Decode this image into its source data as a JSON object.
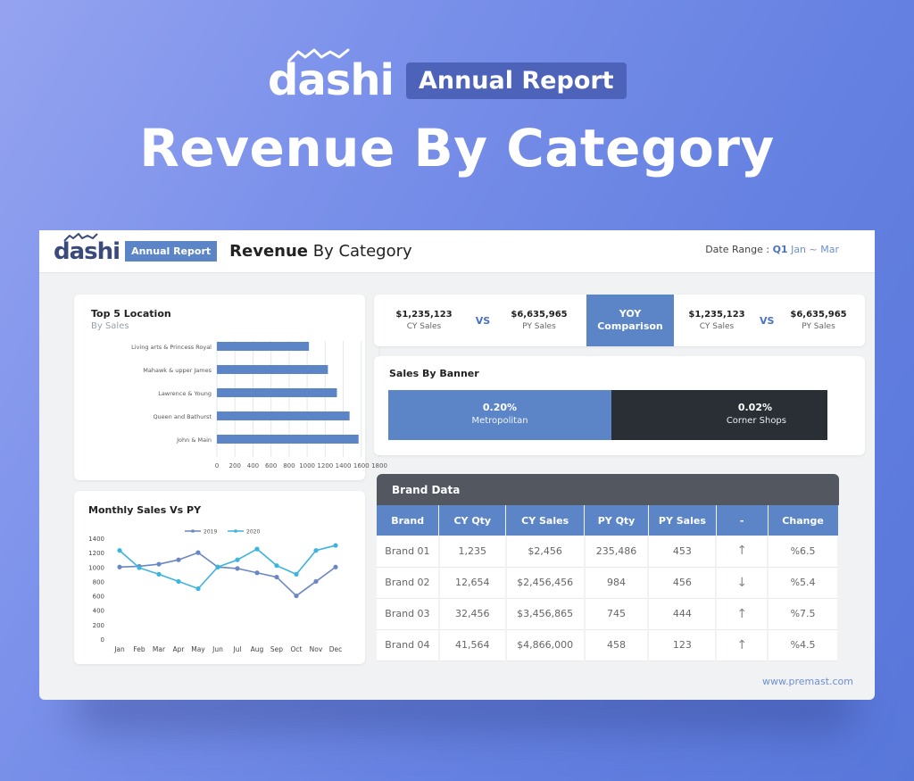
{
  "hero": {
    "logo": "dashi",
    "badge": "Annual Report",
    "title": "Revenue By Category"
  },
  "header": {
    "logo": "dashi",
    "badge": "Annual Report",
    "title_bold": "Revenue",
    "title_rest": " By Category",
    "date_label": "Date Range : ",
    "date_quarter": "Q1",
    "date_months": " Jan ~ Mar"
  },
  "top5": {
    "title": "Top 5 Location",
    "subtitle": "By Sales"
  },
  "monthly": {
    "title": "Monthly Sales Vs PY"
  },
  "yoy": {
    "left_cy_value": "$1,235,123",
    "left_cy_label": "CY Sales",
    "left_vs": "VS",
    "left_py_value": "$6,635,965",
    "left_py_label": "PY Sales",
    "mid_line1": "YOY",
    "mid_line2": "Comparison",
    "right_cy_value": "$1,235,123",
    "right_cy_label": "CY Sales",
    "right_vs": "VS",
    "right_py_value": "$6,635,965",
    "right_py_label": "PY Sales"
  },
  "banner": {
    "title": "Sales By Banner",
    "a_pct": "0.20%",
    "a_name": "Metropolitan",
    "b_pct": "0.02%",
    "b_name": "Corner Shops"
  },
  "brand": {
    "title": "Brand Data",
    "columns": [
      "Brand",
      "CY Qty",
      "CY Sales",
      "PY Qty",
      "PY Sales",
      "-",
      "Change"
    ],
    "rows": [
      [
        "Brand 01",
        "1,235",
        "$2,456",
        "235,486",
        "453",
        "↑",
        "%6.5"
      ],
      [
        "Brand 02",
        "12,654",
        "$2,456,456",
        "984",
        "456",
        "↓",
        "%5.4"
      ],
      [
        "Brand 03",
        "32,456",
        "$3,456,865",
        "745",
        "444",
        "↑",
        "%7.5"
      ],
      [
        "Brand 04",
        "41,564",
        "$4,866,000",
        "458",
        "123",
        "↑",
        "%4.5"
      ]
    ]
  },
  "footer": {
    "site": "www.premast.com"
  },
  "colors": {
    "accent": "#5c85c8",
    "dark": "#2a2f36",
    "line_2019": "#6b86c4",
    "line_2020": "#3cb4e0"
  },
  "chart_data": [
    {
      "type": "bar",
      "orientation": "horizontal",
      "categories": [
        "Living arts & Princess Royal",
        "Mahawk & upper James",
        "Lawrence & Young",
        "Queen and Bathurst",
        "John & Main"
      ],
      "values": [
        1020,
        1230,
        1330,
        1470,
        1570
      ],
      "xticks": [
        "0",
        "200",
        "400",
        "600",
        "800",
        "1000",
        "1200",
        "1400",
        "1600",
        "1800"
      ],
      "xlim": [
        0,
        1800
      ],
      "grid": true
    },
    {
      "type": "line",
      "x": [
        "Jan",
        "Feb",
        "Mar",
        "Apr",
        "May",
        "Jun",
        "Jul",
        "Aug",
        "Sep",
        "Oct",
        "Nov",
        "Dec"
      ],
      "series": [
        {
          "name": "2019",
          "values": [
            1000,
            1010,
            1040,
            1100,
            1200,
            1000,
            980,
            920,
            860,
            600,
            800,
            1000
          ]
        },
        {
          "name": "2020",
          "values": [
            1230,
            990,
            900,
            800,
            700,
            1000,
            1100,
            1250,
            1020,
            900,
            1230,
            1300
          ]
        }
      ],
      "yticks": [
        "0",
        "200",
        "400",
        "600",
        "800",
        "1000",
        "1200",
        "1400"
      ],
      "ylim": [
        0,
        1400
      ],
      "legend": "top-center"
    }
  ]
}
